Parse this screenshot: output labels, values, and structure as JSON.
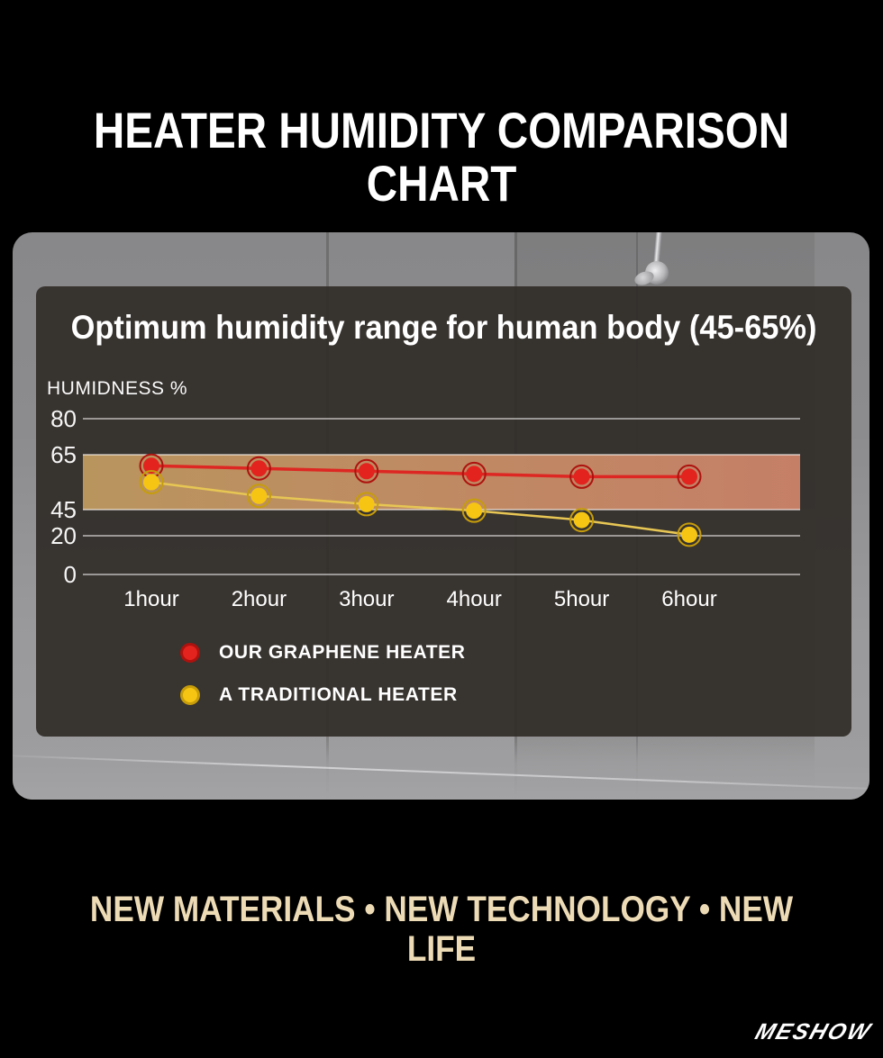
{
  "poster": {
    "title": "HEATER HUMIDITY COMPARISON CHART",
    "tagline": "NEW MATERIALS •  NEW TECHNOLOGY • NEW LIFE",
    "brand_logo": "MESHOW"
  },
  "chart_data": {
    "type": "line",
    "title": "Optimum humidity range for human body (45-65%)",
    "ylabel": "HUMIDNESS %",
    "categories": [
      "1hour",
      "2hour",
      "3hour",
      "4hour",
      "5hour",
      "6hour"
    ],
    "y_ticks": [
      80,
      65,
      45,
      20,
      0
    ],
    "y_axis_nonlinear": true,
    "grid": true,
    "optimal_band": {
      "from": 45,
      "to": 65,
      "color_left": "#b9955e",
      "color_right": "#c57f67"
    },
    "series": [
      {
        "name": "OUR GRAPHENE HEATER",
        "color": "#e2231e",
        "line_color": "#dd2722",
        "marker_ring": "#ad120e",
        "values": [
          61,
          60,
          59,
          58,
          57,
          57
        ]
      },
      {
        "name": "A TRADITIONAL HEATER",
        "color": "#f6c513",
        "line_color": "#e7c654",
        "marker_ring": "#c79d0b",
        "values": [
          55,
          50,
          47,
          44,
          35,
          21
        ]
      }
    ],
    "legend_position": "bottom-left"
  },
  "colors": {
    "background": "#000000",
    "title_text": "#ffffff",
    "tagline_text": "#eddbb6",
    "card_bg": "rgba(48,44,40,0.93)",
    "grid_line": "rgba(255,255,255,0.8)"
  }
}
